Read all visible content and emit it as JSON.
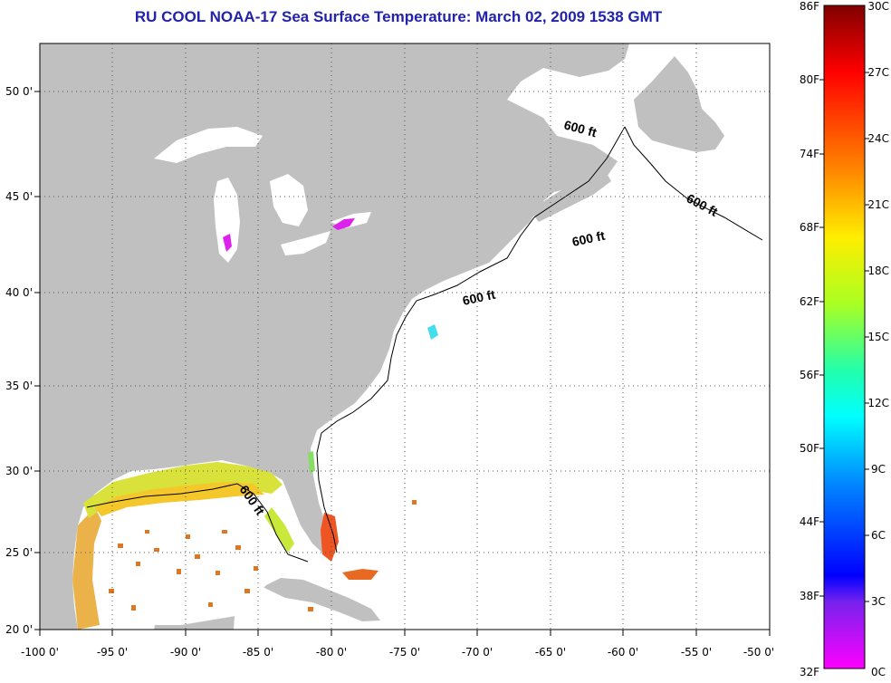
{
  "title": "RU COOL  NOAA-17  Sea Surface Temperature:  March 02, 2009 1538 GMT",
  "map": {
    "lon_labels": [
      "-100 0'",
      "-95 0'",
      "-90 0'",
      "-85 0'",
      "-80 0'",
      "-75 0'",
      "-70 0'",
      "-65 0'",
      "-60 0'",
      "-55 0'",
      "-50 0'"
    ],
    "lat_labels": [
      "50 0'",
      "45 0'",
      "40 0'",
      "35 0'",
      "30 0'",
      "25 0'",
      "20 0'"
    ],
    "contour_label": "600 ft",
    "land_color": "#c0c0c0",
    "cloud_color": "#ffffff"
  },
  "colorbar": {
    "f_labels": [
      "86F",
      "80F",
      "74F",
      "68F",
      "62F",
      "56F",
      "50F",
      "44F",
      "38F",
      "32F"
    ],
    "c_labels": [
      "30C",
      "27C",
      "24C",
      "21C",
      "18C",
      "15C",
      "12C",
      "9C",
      "6C",
      "3C",
      "0C"
    ]
  }
}
